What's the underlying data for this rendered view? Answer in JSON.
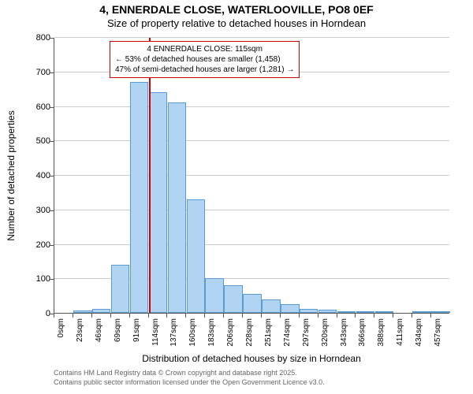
{
  "title": {
    "line1": "4, ENNERDALE CLOSE, WATERLOOVILLE, PO8 0EF",
    "line2": "Size of property relative to detached houses in Horndean",
    "fontsize_line1": 14,
    "fontsize_line2": 13
  },
  "chart": {
    "type": "histogram",
    "ylabel": "Number of detached properties",
    "xlabel": "Distribution of detached houses by size in Horndean",
    "label_fontsize": 12,
    "tick_fontsize": 11,
    "ylim": [
      0,
      800
    ],
    "ytick_step": 100,
    "background_color": "#ffffff",
    "grid_color": "#cccccc",
    "bar_fill": "#b0d4f1",
    "bar_border": "#5a9bd4",
    "marker_color": "#cc0000",
    "marker_x_value": 115,
    "x_categories": [
      "0sqm",
      "23sqm",
      "46sqm",
      "69sqm",
      "91sqm",
      "114sqm",
      "137sqm",
      "160sqm",
      "183sqm",
      "206sqm",
      "228sqm",
      "251sqm",
      "274sqm",
      "297sqm",
      "320sqm",
      "343sqm",
      "366sqm",
      "388sqm",
      "411sqm",
      "434sqm",
      "457sqm"
    ],
    "bar_values": [
      0,
      8,
      12,
      140,
      670,
      640,
      610,
      330,
      100,
      80,
      55,
      40,
      25,
      12,
      10,
      3,
      3,
      2,
      0,
      2,
      2
    ],
    "infobox": {
      "line1": "4 ENNERDALE CLOSE: 115sqm",
      "line2": "← 53% of detached houses are smaller (1,458)",
      "line3": "47% of semi-detached houses are larger (1,281) →",
      "border_color": "#cc0000",
      "fontsize": 10
    }
  },
  "footer": {
    "line1": "Contains HM Land Registry data © Crown copyright and database right 2025.",
    "line2": "Contains public sector information licensed under the Open Government Licence v3.0.",
    "color": "#666666",
    "fontsize": 9
  }
}
